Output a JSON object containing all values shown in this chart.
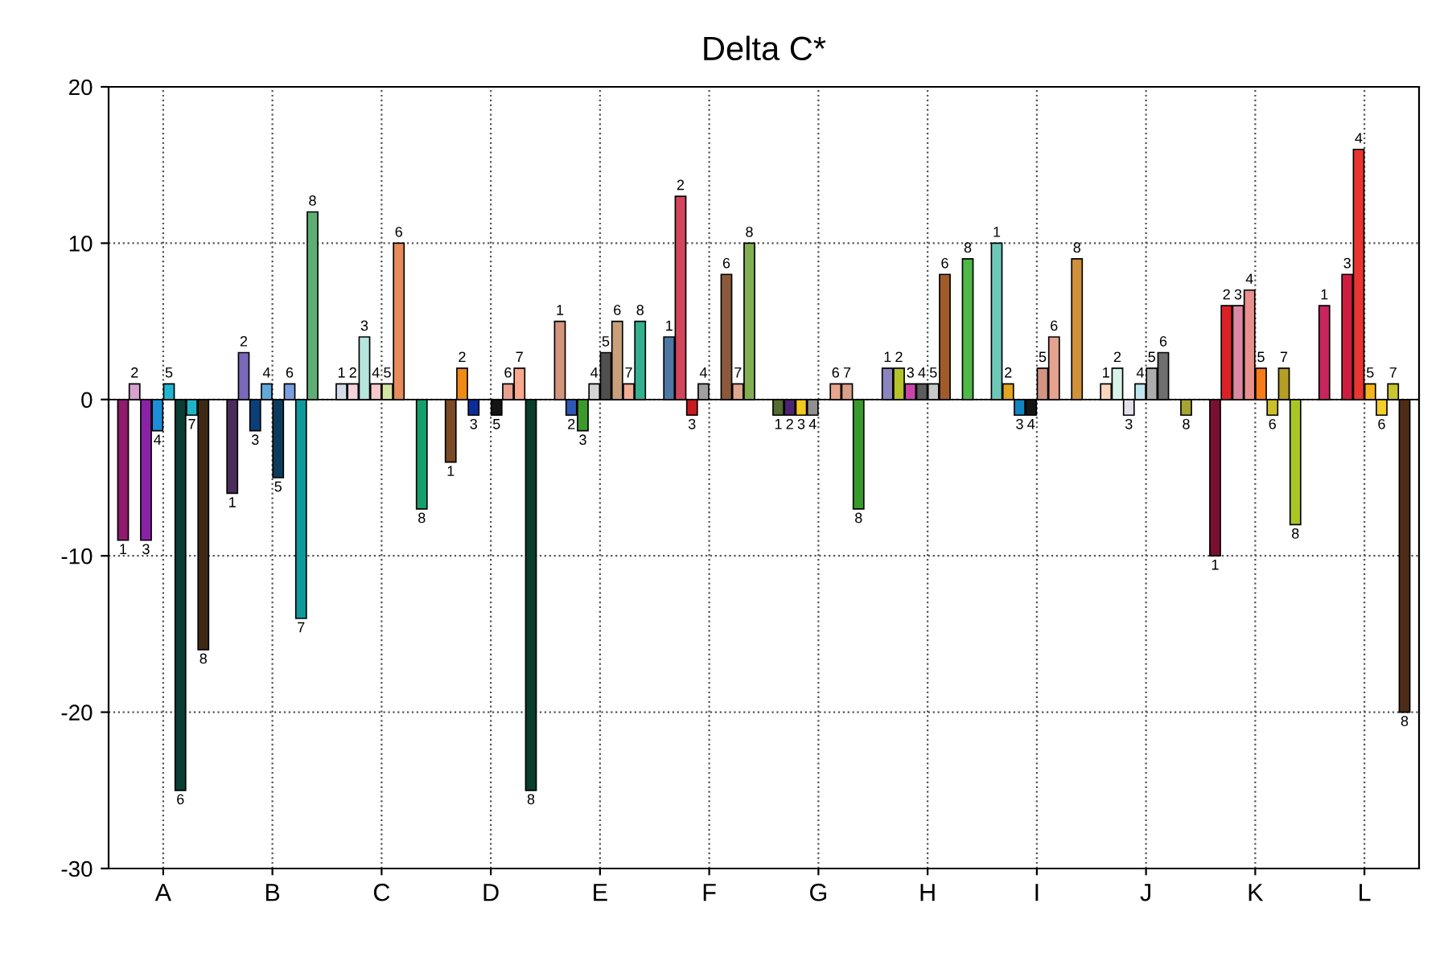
{
  "chart_data": {
    "type": "bar",
    "title": "Delta C*",
    "categories": [
      "A",
      "B",
      "C",
      "D",
      "E",
      "F",
      "G",
      "H",
      "I",
      "J",
      "K",
      "L"
    ],
    "series": [
      {
        "name": "1",
        "values": [
          -9,
          -6,
          1,
          -4,
          5,
          4,
          -1,
          2,
          10,
          1,
          -10,
          6
        ],
        "colors": [
          "#8e1b6c",
          "#4a2d5a",
          "#d4dcea",
          "#7b4a26",
          "#d4957d",
          "#4f77a6",
          "#556b2f",
          "#8c85c0",
          "#6ec8b8",
          "#f9d5bc",
          "#7a1030",
          "#c8245e"
        ]
      },
      {
        "name": "2",
        "values": [
          1,
          3,
          1,
          2,
          -1,
          13,
          -1,
          2,
          1,
          2,
          6,
          null
        ],
        "colors": [
          "#d9a0d2",
          "#7b68b8",
          "#f4d3da",
          "#ef8a17",
          "#2f58b5",
          "#d2455a",
          "#4b2470",
          "#b5c22a",
          "#e3a51f",
          "#d8f3e8",
          "#db2126",
          null
        ]
      },
      {
        "name": "3",
        "values": [
          -9,
          -2,
          4,
          -1,
          -2,
          -1,
          -1,
          1,
          -1,
          -1,
          6,
          8
        ],
        "colors": [
          "#8a22a6",
          "#0b3f7a",
          "#b5e5dd",
          "#0a2d9a",
          "#3c9a2c",
          "#c8191f",
          "#f3c81f",
          "#c946a9",
          "#1185bf",
          "#e3e0ea",
          "#dc88a2",
          "#cf1d3f"
        ]
      },
      {
        "name": "4",
        "values": [
          -2,
          1,
          1,
          null,
          1,
          1,
          -1,
          1,
          -1,
          1,
          7,
          16
        ],
        "colors": [
          "#1b8fd9",
          "#62a9d9",
          "#f6c9cc",
          null,
          "#d4d4d4",
          "#a0a0a0",
          "#909090",
          "#5c5c5c",
          "#141414",
          "#bfe6ee",
          "#e8908c",
          "#e8352f"
        ]
      },
      {
        "name": "5",
        "values": [
          1,
          -5,
          1,
          -1,
          3,
          null,
          null,
          1,
          2,
          2,
          2,
          1
        ],
        "colors": [
          "#22b5cf",
          "#0d3b5c",
          "#d5e6a3",
          "#151515",
          "#4f4f4f",
          null,
          null,
          "#c8c8c8",
          "#d49482",
          "#acacac",
          "#f77b16",
          "#f4b41c"
        ]
      },
      {
        "name": "6",
        "values": [
          -25,
          1,
          10,
          1,
          5,
          8,
          1,
          8,
          4,
          3,
          -1,
          -1
        ],
        "colors": [
          "#0a3d33",
          "#7a9fe0",
          "#e88b5c",
          "#e7a08f",
          "#c9a07c",
          "#8b5a3a",
          "#e9a58c",
          "#a35a2a",
          "#e5a38f",
          "#6f6f6f",
          "#cbc02a",
          "#f3cf27"
        ]
      },
      {
        "name": "7",
        "values": [
          -1,
          -14,
          null,
          2,
          1,
          1,
          1,
          null,
          null,
          null,
          2,
          1
        ],
        "colors": [
          "#1fb5c6",
          "#10999a",
          null,
          "#f7a88e",
          "#f3ac95",
          "#e0a890",
          "#dba08a",
          null,
          null,
          null,
          "#b59e24",
          "#c9c52e"
        ]
      },
      {
        "name": "8",
        "values": [
          -16,
          12,
          -7,
          -25,
          5,
          10,
          -7,
          9,
          9,
          -1,
          -8,
          -20
        ],
        "colors": [
          "#3e2a14",
          "#5dae75",
          "#11a06e",
          "#083e2a",
          "#33b08f",
          "#82ae52",
          "#389a2a",
          "#4fb846",
          "#d0903c",
          "#a5a333",
          "#a9c624",
          "#4f2c17"
        ]
      }
    ],
    "ylim": [
      -30,
      20
    ],
    "yticks": [
      -30,
      -20,
      -10,
      0,
      10,
      20
    ],
    "grid": true
  }
}
